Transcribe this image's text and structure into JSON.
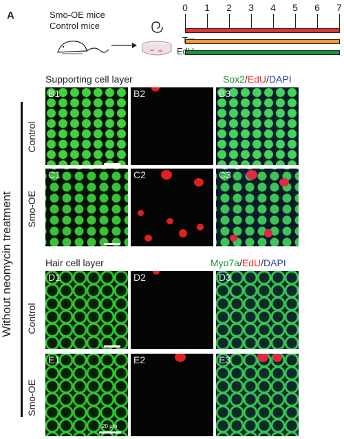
{
  "figure": {
    "panel_label": "A",
    "mice_lines": [
      "Smo-OE mice",
      "Control mice"
    ],
    "timeline": {
      "ticks": [
        "0",
        "1",
        "2",
        "3",
        "4",
        "5",
        "6",
        "7"
      ],
      "bars": [
        {
          "label": "",
          "color": "#e8302c"
        },
        {
          "label": "Tm",
          "color": "#f39a2a"
        },
        {
          "label": "EdU",
          "color": "#1e8f3e"
        }
      ]
    },
    "side_label": "Without neomycin treatment",
    "sections": [
      {
        "title": "Supporting cell layer",
        "stain": {
          "a": "Sox2",
          "b": "EdU",
          "c": "DAPI",
          "sep": "/"
        },
        "rows": [
          {
            "label": "Control",
            "panels": [
              "B1",
              "B2",
              "B3"
            ]
          },
          {
            "label": "Smo-OE",
            "panels": [
              "C1",
              "C2",
              "C3"
            ]
          }
        ]
      },
      {
        "title": "Hair cell layer",
        "stain": {
          "a": "Myo7a",
          "b": "EdU",
          "c": "DAPI",
          "sep": "/"
        },
        "rows": [
          {
            "label": "Control",
            "panels": [
              "D1",
              "D2",
              "D3"
            ]
          },
          {
            "label": "Smo-OE",
            "panels": [
              "E1",
              "E2",
              "E3"
            ]
          }
        ]
      }
    ],
    "scale_bar_label": "20 μm",
    "colors": {
      "green": "#1e8f3e",
      "red": "#e8302c",
      "blue": "#2a3aa8",
      "orange": "#f39a2a"
    }
  }
}
